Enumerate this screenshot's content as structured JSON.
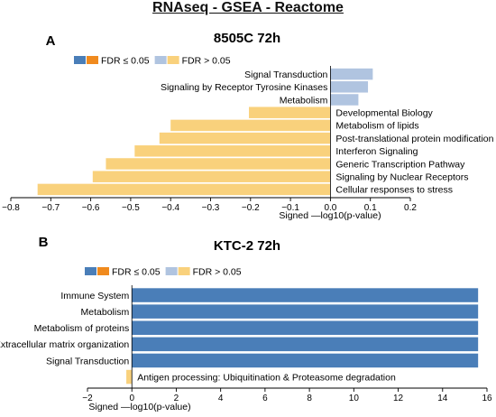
{
  "page_title": "RNAseq - GSEA - Reactome",
  "colors": {
    "fdr_sig_blue": "#4A7EB8",
    "fdr_sig_orange": "#F08A1E",
    "fdr_ns_blue": "#B0C4E0",
    "fdr_ns_orange": "#F9D17C",
    "axis": "#000000"
  },
  "chart_data": [
    {
      "panel_label": "A",
      "title": "8505C 72h",
      "type": "bar",
      "orientation": "horizontal",
      "legend": {
        "placement": "top-left",
        "entries": [
          {
            "label": "FDR ≤ 0.05",
            "colors": [
              "fdr_sig_blue",
              "fdr_sig_orange"
            ]
          },
          {
            "label": "FDR > 0.05",
            "colors": [
              "fdr_ns_blue",
              "fdr_ns_orange"
            ]
          }
        ]
      },
      "xlabel": "Signed —log10(p-value)",
      "ylabel": "",
      "xlim": [
        -0.8,
        0.2
      ],
      "xticks": [
        -0.8,
        -0.7,
        -0.6,
        -0.5,
        -0.4,
        -0.3,
        -0.2,
        -0.1,
        0.0,
        0.1,
        0.2
      ],
      "xtick_labels": [
        "−0.8",
        "−0.7",
        "−0.6",
        "−0.5",
        "−0.4",
        "−0.3",
        "−0.2",
        "−0.1",
        "0.0",
        "0.1",
        "0.2"
      ],
      "grid": false,
      "categories": [
        "Signal Transduction",
        "Signaling by Receptor Tyrosine Kinases",
        "Metabolism",
        "Developmental Biology",
        "Metabolism of lipids",
        "Post-translational protein modification",
        "Interferon Signaling",
        "Generic Transcription Pathway",
        "Signaling by Nuclear Receptors",
        "Cellular responses to stress"
      ],
      "values": [
        0.106,
        0.094,
        0.07,
        -0.204,
        -0.4,
        -0.428,
        -0.49,
        -0.562,
        -0.595,
        -0.733
      ],
      "fdr_significant": [
        false,
        false,
        false,
        false,
        false,
        false,
        false,
        false,
        false,
        false
      ]
    },
    {
      "panel_label": "B",
      "title": "KTC-2 72h",
      "type": "bar",
      "orientation": "horizontal",
      "legend": {
        "placement": "top-left",
        "entries": [
          {
            "label": "FDR ≤ 0.05",
            "colors": [
              "fdr_sig_blue",
              "fdr_sig_orange"
            ]
          },
          {
            "label": "FDR > 0.05",
            "colors": [
              "fdr_ns_blue",
              "fdr_ns_orange"
            ]
          }
        ]
      },
      "xlabel": "Signed —log10(p-value)",
      "ylabel": "",
      "xlim": [
        -2,
        16
      ],
      "xticks": [
        -2,
        0,
        2,
        4,
        6,
        8,
        10,
        12,
        14,
        16
      ],
      "xtick_labels": [
        "−2",
        "0",
        "2",
        "4",
        "6",
        "8",
        "10",
        "12",
        "14",
        "16"
      ],
      "grid": false,
      "categories": [
        "Immune System",
        "Metabolism",
        "Metabolism of proteins",
        "Extracellular matrix organization",
        "Signal Transduction",
        "Antigen processing: Ubiquitination & Proteasome degradation"
      ],
      "values": [
        15.6,
        15.6,
        15.6,
        15.6,
        15.6,
        -0.25
      ],
      "fdr_significant": [
        true,
        true,
        true,
        true,
        true,
        false
      ]
    }
  ]
}
